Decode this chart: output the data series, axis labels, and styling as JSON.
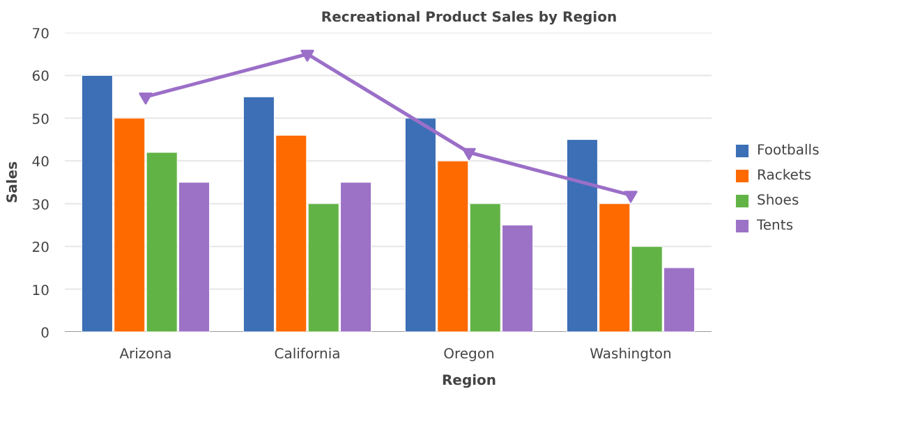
{
  "chart_data": {
    "type": "bar",
    "title": "Recreational Product Sales by Region",
    "xlabel": "Region",
    "ylabel": "Sales",
    "categories": [
      "Arizona",
      "California",
      "Oregon",
      "Washington"
    ],
    "series": [
      {
        "name": "Footballs",
        "color": "#3c6fb6",
        "values": [
          60,
          55,
          50,
          45
        ]
      },
      {
        "name": "Rackets",
        "color": "#ff6a00",
        "values": [
          50,
          46,
          40,
          30
        ]
      },
      {
        "name": "Shoes",
        "color": "#62b346",
        "values": [
          42,
          30,
          30,
          20
        ]
      },
      {
        "name": "Tents",
        "color": "#9c72c6",
        "values": [
          35,
          35,
          25,
          15
        ]
      },
      {
        "type": "line",
        "color": "#9b6fc8",
        "values": [
          55,
          65,
          42,
          32
        ],
        "marker": "triangle"
      }
    ],
    "ylim": [
      0,
      70
    ],
    "yticks": [
      0,
      10,
      20,
      30,
      40,
      50,
      60,
      70
    ],
    "grid": "y",
    "legend": "right"
  }
}
